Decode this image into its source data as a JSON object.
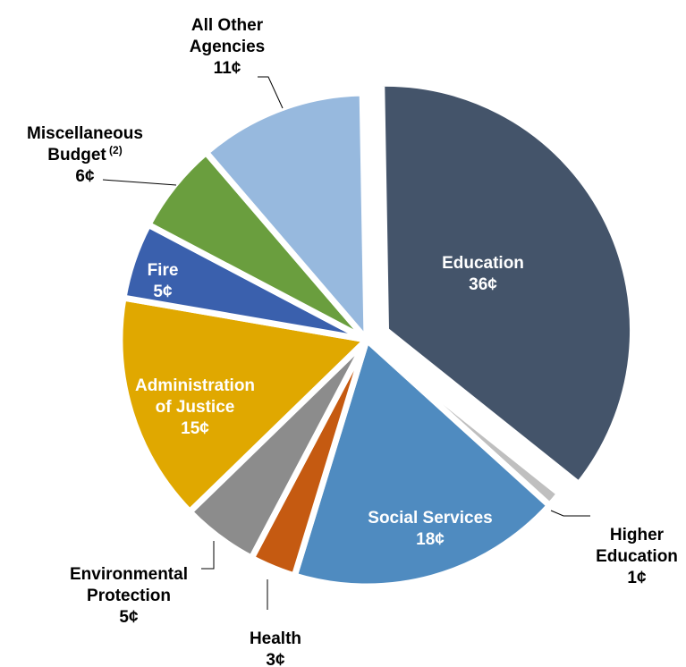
{
  "chart_data": {
    "type": "pie",
    "unit": "¢",
    "title": "",
    "slices": [
      {
        "label": [
          "Education"
        ],
        "value": 36,
        "value_label": "36¢",
        "color": "#44546a"
      },
      {
        "label": [
          "Higher",
          "Education"
        ],
        "value": 1,
        "value_label": "1¢",
        "color": "#bfbfbf"
      },
      {
        "label": [
          "Social Services"
        ],
        "value": 18,
        "value_label": "18¢",
        "color": "#4f8bc0"
      },
      {
        "label": [
          "Health"
        ],
        "value": 3,
        "value_label": "3¢",
        "color": "#c55a11"
      },
      {
        "label": [
          "Environmental",
          "Protection"
        ],
        "value": 5,
        "value_label": "5¢",
        "color": "#8c8c8c"
      },
      {
        "label": [
          "Administration",
          "of Justice"
        ],
        "value": 15,
        "value_label": "15¢",
        "color": "#e0a800"
      },
      {
        "label": [
          "Fire"
        ],
        "value": 5,
        "value_label": "5¢",
        "color": "#3a60ad"
      },
      {
        "label": [
          "Miscellaneous",
          "Budget"
        ],
        "superscript": "(2)",
        "value": 6,
        "value_label": "6¢",
        "color": "#6a9e3e"
      },
      {
        "label": [
          "All Other",
          "Agencies"
        ],
        "value": 11,
        "value_label": "11¢",
        "color": "#97b9de"
      }
    ]
  }
}
